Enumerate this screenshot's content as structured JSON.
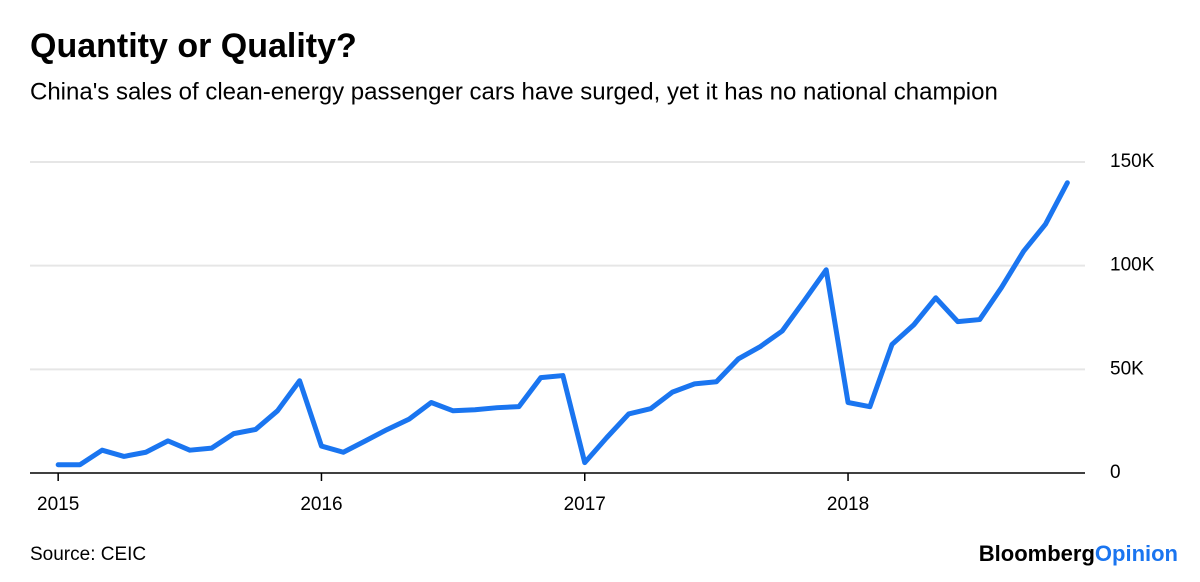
{
  "chart_data": {
    "type": "line",
    "title": "Quantity or Quality?",
    "subtitle": "China's sales of clean-energy passenger cars have surged, yet it has no national champion",
    "source": "Source: CEIC",
    "brand": [
      "Bloomberg",
      "Opinion"
    ],
    "x": [
      2015,
      2015.083,
      2015.167,
      2015.25,
      2015.333,
      2015.417,
      2015.5,
      2015.583,
      2015.667,
      2015.75,
      2015.833,
      2015.917,
      2016,
      2016.083,
      2016.167,
      2016.25,
      2016.333,
      2016.417,
      2016.5,
      2016.583,
      2016.667,
      2016.75,
      2016.833,
      2016.917,
      2017,
      2017.083,
      2017.167,
      2017.25,
      2017.333,
      2017.417,
      2017.5,
      2017.583,
      2017.667,
      2017.75,
      2017.833,
      2017.917,
      2018,
      2018.083,
      2018.167,
      2018.25,
      2018.333,
      2018.417,
      2018.5,
      2018.583,
      2018.667,
      2018.75,
      2018.833
    ],
    "series": [
      {
        "name": "Clean-energy passenger car sales",
        "color": "#1a75f0",
        "values": [
          4,
          4,
          11,
          8,
          10,
          15.5,
          11,
          12,
          19,
          21,
          30,
          44.5,
          13,
          10,
          15.5,
          21,
          26,
          34,
          30,
          30.5,
          31.5,
          32,
          46,
          47,
          5,
          17,
          28.5,
          31,
          39,
          43,
          44,
          55,
          61,
          68.5,
          83,
          98,
          34,
          32,
          62,
          71.5,
          84.5,
          73,
          74,
          89.5,
          107,
          120,
          140
        ]
      }
    ],
    "xlim": [
      2014.893,
      2018.9
    ],
    "xticks": [
      2015,
      2016,
      2017,
      2018
    ],
    "ylim": [
      0,
      150
    ],
    "yticks": [
      0,
      {
        "value": 50,
        "label": "50K"
      },
      {
        "value": 100,
        "label": "100K"
      },
      {
        "value": 150,
        "label": "150K"
      }
    ],
    "grid": true
  }
}
